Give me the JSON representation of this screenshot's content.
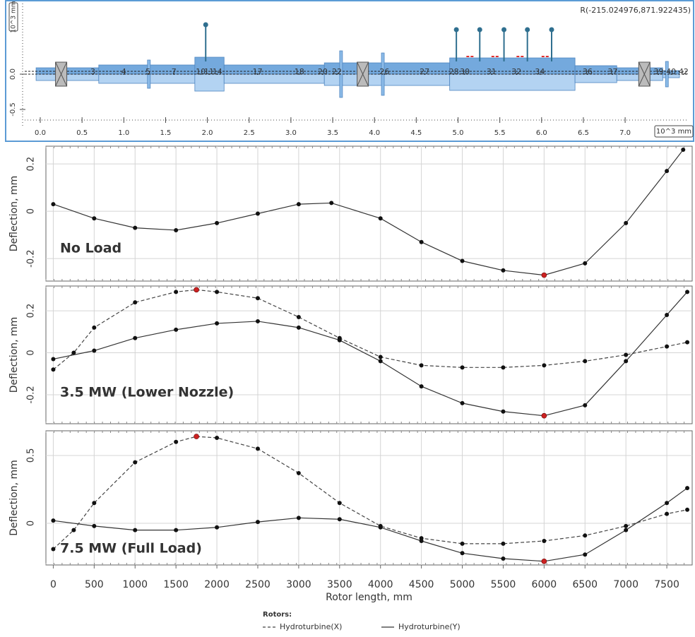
{
  "chart_data": [
    {
      "type": "rotor",
      "coordinates": "R(-215.024976,871.922435)",
      "xlabel": "10^3 mm",
      "ylabel": "10^3 mm",
      "xlim": [
        -0.186,
        7.76
      ],
      "ylim": [
        -0.73,
        1.0
      ],
      "xticks": [
        {
          "value": 0,
          "label": "0.0"
        },
        0.5,
        {
          "value": 1,
          "label": "1.0"
        },
        1.5,
        {
          "value": 2,
          "label": "2.0"
        },
        2.5,
        {
          "value": 3,
          "label": "3.0"
        },
        3.5,
        {
          "value": 4,
          "label": "4.0"
        },
        4.5,
        {
          "value": 5,
          "label": "5.0"
        },
        5.5,
        {
          "value": 6,
          "label": "6.0"
        },
        6.5,
        {
          "value": 7,
          "label": "7.0"
        }
      ],
      "yticks": [
        -0.5,
        {
          "value": 0,
          "label": "0.0"
        }
      ],
      "stations": [
        {
          "label": "3",
          "x": 0.63
        },
        {
          "label": "4",
          "x": 1.0
        },
        {
          "label": "5",
          "x": 1.29
        },
        {
          "label": "7",
          "x": 1.6
        },
        {
          "label": "10",
          "x": 1.92
        },
        {
          "label": "11",
          "x": 2.02
        },
        {
          "label": "14",
          "x": 2.12
        },
        {
          "label": "17",
          "x": 2.6
        },
        {
          "label": "18",
          "x": 3.1
        },
        {
          "label": "20",
          "x": 3.38
        },
        {
          "label": "22",
          "x": 3.55
        },
        {
          "label": "26",
          "x": 4.12
        },
        {
          "label": "27",
          "x": 4.6
        },
        {
          "label": "28",
          "x": 4.95
        },
        {
          "label": "30",
          "x": 5.08
        },
        {
          "label": "31",
          "x": 5.4
        },
        {
          "label": "32",
          "x": 5.7
        },
        {
          "label": "34",
          "x": 5.98
        },
        {
          "label": "36",
          "x": 6.55
        },
        {
          "label": "37",
          "x": 6.85
        },
        {
          "label": "39",
          "x": 7.4
        },
        {
          "label": "40",
          "x": 7.55
        },
        {
          "label": "42",
          "x": 7.7
        }
      ]
    },
    {
      "type": "line",
      "annotation": "No Load",
      "ylabel": "Deflection, mm",
      "grid": true,
      "xlim": [
        -90,
        7810
      ],
      "ylim": [
        -0.295,
        0.275
      ],
      "xticks": [
        0,
        500,
        1000,
        1500,
        2000,
        2500,
        3000,
        3500,
        4000,
        4500,
        5000,
        5500,
        6000,
        6500,
        7000,
        7500
      ],
      "yticks": [
        -0.2,
        0,
        0.2
      ],
      "series": [
        {
          "name": "Hydroturbine(Y)",
          "color": "#333333",
          "line_style": "solid",
          "x": [
            0,
            500,
            1000,
            1500,
            2000,
            2500,
            3000,
            3400,
            4000,
            4500,
            5000,
            5500,
            6000,
            6500,
            7000,
            7500,
            7700
          ],
          "values": [
            0.03,
            -0.03,
            -0.07,
            -0.08,
            -0.05,
            -0.01,
            0.03,
            0.035,
            -0.03,
            -0.13,
            -0.21,
            -0.25,
            -0.27,
            -0.22,
            -0.05,
            0.17,
            0.26
          ]
        }
      ],
      "extreme_points": {
        "color": "#cc2222",
        "points": [
          {
            "x": 6000,
            "y": -0.27
          }
        ]
      }
    },
    {
      "type": "line",
      "annotation": "3.5 MW (Lower Nozzle)",
      "ylabel": "Deflection, mm",
      "grid": true,
      "xlim": [
        -90,
        7810
      ],
      "ylim": [
        -0.338,
        0.318
      ],
      "xticks": [
        0,
        500,
        1000,
        1500,
        2000,
        2500,
        3000,
        3500,
        4000,
        4500,
        5000,
        5500,
        6000,
        6500,
        7000,
        7500
      ],
      "yticks": [
        -0.2,
        0,
        0.2
      ],
      "series": [
        {
          "name": "Hydroturbine(X)",
          "color": "#444444",
          "line_style": "dashed",
          "x": [
            0,
            250,
            500,
            1000,
            1500,
            1750,
            2000,
            2500,
            3000,
            3500,
            4000,
            4500,
            5000,
            5500,
            6000,
            6500,
            7000,
            7500,
            7750
          ],
          "values": [
            -0.08,
            0.0,
            0.12,
            0.24,
            0.29,
            0.3,
            0.29,
            0.26,
            0.17,
            0.07,
            -0.02,
            -0.06,
            -0.07,
            -0.07,
            -0.06,
            -0.04,
            -0.01,
            0.03,
            0.05
          ]
        },
        {
          "name": "Hydroturbine(Y)",
          "color": "#333333",
          "line_style": "solid",
          "x": [
            0,
            500,
            1000,
            1500,
            2000,
            2500,
            3000,
            3500,
            4000,
            4500,
            5000,
            5500,
            6000,
            6500,
            7000,
            7500,
            7750
          ],
          "values": [
            -0.03,
            0.01,
            0.07,
            0.11,
            0.14,
            0.15,
            0.12,
            0.06,
            -0.04,
            -0.16,
            -0.24,
            -0.28,
            -0.3,
            -0.25,
            -0.04,
            0.18,
            0.29
          ]
        }
      ],
      "extreme_points": {
        "color": "#cc2222",
        "points": [
          {
            "x": 1750,
            "y": 0.3
          },
          {
            "x": 6000,
            "y": -0.3
          }
        ]
      }
    },
    {
      "type": "line",
      "annotation": "7.5 MW (Full Load)",
      "ylabel": "Deflection, mm",
      "xlabel": "Rotor length, mm",
      "grid": true,
      "xlim": [
        -90,
        7810
      ],
      "ylim": [
        -0.307,
        0.682
      ],
      "xticks": [
        0,
        500,
        1000,
        1500,
        2000,
        2500,
        3000,
        3500,
        4000,
        4500,
        5000,
        5500,
        6000,
        6500,
        7000,
        7500
      ],
      "yticks": [
        0,
        0.5
      ],
      "legend_title": "Rotors:",
      "series": [
        {
          "name": "Hydroturbine(X)",
          "color": "#444444",
          "line_style": "dashed",
          "x": [
            0,
            250,
            500,
            1000,
            1500,
            1750,
            2000,
            2500,
            3000,
            3500,
            4000,
            4500,
            5000,
            5500,
            6000,
            6500,
            7000,
            7500,
            7750
          ],
          "values": [
            -0.19,
            -0.05,
            0.15,
            0.45,
            0.6,
            0.64,
            0.63,
            0.55,
            0.37,
            0.15,
            -0.02,
            -0.11,
            -0.15,
            -0.15,
            -0.13,
            -0.09,
            -0.02,
            0.07,
            0.1
          ]
        },
        {
          "name": "Hydroturbine(Y)",
          "color": "#333333",
          "line_style": "solid",
          "x": [
            0,
            500,
            1000,
            1500,
            2000,
            2500,
            3000,
            3500,
            4000,
            4500,
            5000,
            5500,
            6000,
            6500,
            7000,
            7500,
            7750
          ],
          "values": [
            0.02,
            -0.02,
            -0.05,
            -0.05,
            -0.03,
            0.01,
            0.04,
            0.03,
            -0.03,
            -0.13,
            -0.22,
            -0.26,
            -0.28,
            -0.23,
            -0.05,
            0.15,
            0.26
          ]
        }
      ],
      "extreme_points": {
        "color": "#cc2222",
        "points": [
          {
            "x": 1750,
            "y": 0.64
          },
          {
            "x": 6000,
            "y": -0.28
          }
        ]
      }
    }
  ]
}
